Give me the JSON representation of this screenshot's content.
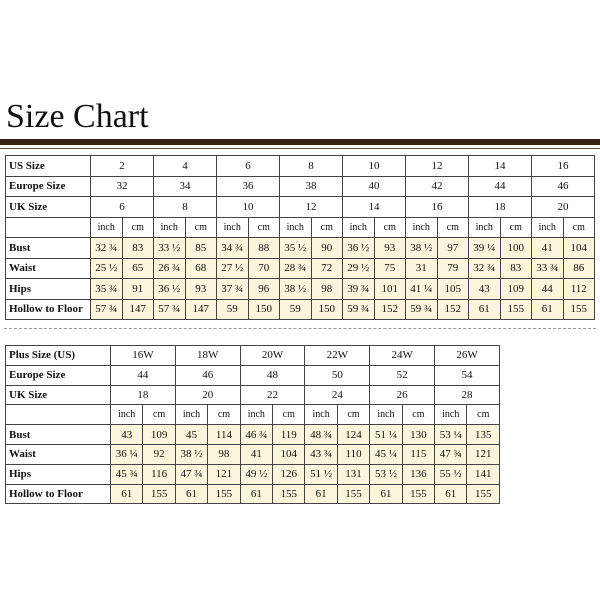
{
  "title": "Size Chart",
  "tables": [
    {
      "size_rows": [
        {
          "label": "US Size",
          "values": [
            "2",
            "4",
            "6",
            "8",
            "10",
            "12",
            "14",
            "16"
          ]
        },
        {
          "label": "Europe Size",
          "values": [
            "32",
            "34",
            "36",
            "38",
            "40",
            "42",
            "44",
            "46"
          ]
        },
        {
          "label": "UK Size",
          "values": [
            "6",
            "8",
            "10",
            "12",
            "14",
            "16",
            "18",
            "20"
          ]
        }
      ],
      "units": [
        "inch",
        "cm"
      ],
      "measure_rows": [
        {
          "label": "Bust",
          "values": [
            "32 ¾",
            "83",
            "33 ½",
            "85",
            "34 ¾",
            "88",
            "35 ½",
            "90",
            "36 ½",
            "93",
            "38 ½",
            "97",
            "39 ¼",
            "100",
            "41",
            "104"
          ]
        },
        {
          "label": "Waist",
          "values": [
            "25 ½",
            "65",
            "26 ¾",
            "68",
            "27 ½",
            "70",
            "28 ¾",
            "72",
            "29 ½",
            "75",
            "31",
            "79",
            "32 ¾",
            "83",
            "33 ¾",
            "86"
          ]
        },
        {
          "label": "Hips",
          "values": [
            "35 ¾",
            "91",
            "36 ½",
            "93",
            "37 ¾",
            "96",
            "38 ½",
            "98",
            "39 ¾",
            "101",
            "41 ¼",
            "105",
            "43",
            "109",
            "44",
            "112"
          ]
        },
        {
          "label": "Hollow to Floor",
          "values": [
            "57 ¾",
            "147",
            "57 ¾",
            "147",
            "59",
            "150",
            "59",
            "150",
            "59 ¾",
            "152",
            "59 ¾",
            "152",
            "61",
            "155",
            "61",
            "155"
          ]
        }
      ]
    },
    {
      "size_rows": [
        {
          "label": "Plus Size (US)",
          "values": [
            "16W",
            "18W",
            "20W",
            "22W",
            "24W",
            "26W"
          ]
        },
        {
          "label": "Europe Size",
          "values": [
            "44",
            "46",
            "48",
            "50",
            "52",
            "54"
          ]
        },
        {
          "label": "UK Size",
          "values": [
            "18",
            "20",
            "22",
            "24",
            "26",
            "28"
          ]
        }
      ],
      "units": [
        "inch",
        "cm"
      ],
      "measure_rows": [
        {
          "label": "Bust",
          "values": [
            "43",
            "109",
            "45",
            "114",
            "46 ¾",
            "119",
            "48 ¾",
            "124",
            "51 ¼",
            "130",
            "53 ¼",
            "135"
          ]
        },
        {
          "label": "Waist",
          "values": [
            "36 ¼",
            "92",
            "38 ½",
            "98",
            "41",
            "104",
            "43 ¾",
            "110",
            "45 ¼",
            "115",
            "47 ¾",
            "121"
          ]
        },
        {
          "label": "Hips",
          "values": [
            "45 ¾",
            "116",
            "47 ¾",
            "121",
            "49 ½",
            "126",
            "51 ½",
            "131",
            "53 ½",
            "136",
            "55 ½",
            "141"
          ]
        },
        {
          "label": "Hollow to Floor",
          "values": [
            "61",
            "155",
            "61",
            "155",
            "61",
            "155",
            "61",
            "155",
            "61",
            "155",
            "61",
            "155"
          ]
        }
      ]
    }
  ]
}
